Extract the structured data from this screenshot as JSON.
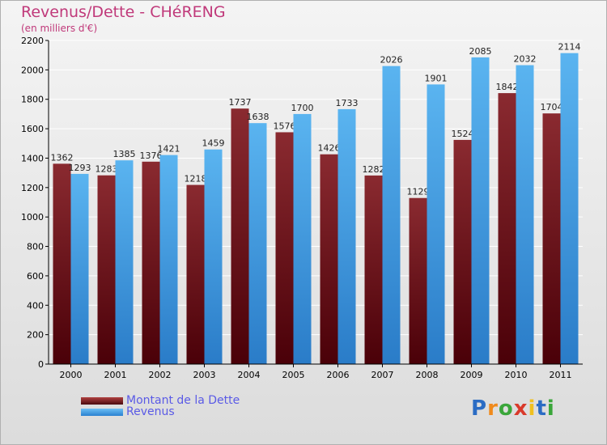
{
  "header": {
    "title": "Revenus/Dette - CHéRENG",
    "subtitle": "(en milliers d'€)"
  },
  "colors": {
    "dette": "#7a1f24",
    "revenus": "#4aa3e8",
    "grid": "#ffffff",
    "axis": "#000000"
  },
  "chart_data": {
    "type": "bar",
    "categories": [
      "2000",
      "2001",
      "2002",
      "2003",
      "2004",
      "2005",
      "2006",
      "2007",
      "2008",
      "2009",
      "2010",
      "2011"
    ],
    "series": [
      {
        "name": "Montant de la Dette",
        "values": [
          1362,
          1283,
          1376,
          1218,
          1737,
          1576,
          1426,
          1282,
          1129,
          1524,
          1842,
          1704
        ]
      },
      {
        "name": "Revenus",
        "values": [
          1293,
          1385,
          1421,
          1459,
          1638,
          1700,
          1733,
          2026,
          1901,
          2085,
          2032,
          2114
        ]
      }
    ],
    "title": "Revenus/Dette - CHéRENG",
    "ylabel": "",
    "xlabel": "",
    "ylim": [
      0,
      2200
    ],
    "yticks": [
      0,
      200,
      400,
      600,
      800,
      1000,
      1200,
      1400,
      1600,
      1800,
      2000,
      2200
    ],
    "grid": true,
    "legend": "bottom-left"
  },
  "legend": {
    "items": [
      "Montant de la Dette",
      "Revenus"
    ]
  },
  "logo": {
    "letters": [
      "P",
      "r",
      "o",
      "x",
      "i",
      "t",
      "i"
    ],
    "colors": [
      "#2b6cc4",
      "#f08a1c",
      "#3aa63a",
      "#d93a2b",
      "#f0c020",
      "#2b6cc4",
      "#3aa63a"
    ]
  }
}
